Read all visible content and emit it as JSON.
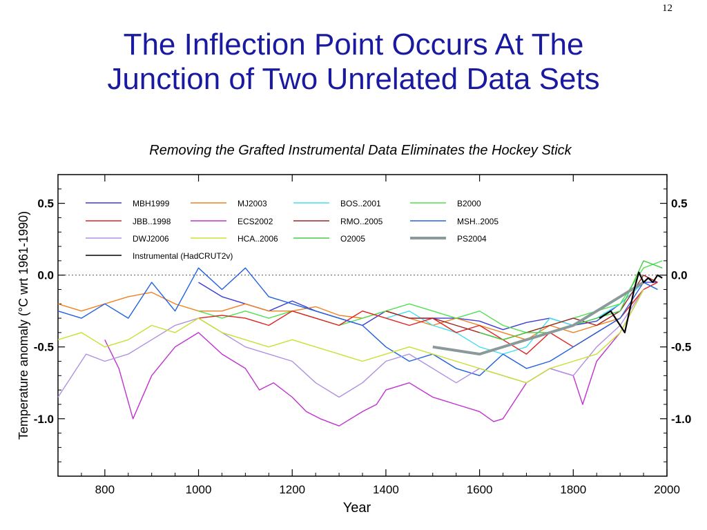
{
  "slide": {
    "number": "12",
    "title_line1": "The Inflection Point Occurs At The",
    "title_line2": "Junction of Two Unrelated Data Sets",
    "subtitle": "Removing the Grafted Instrumental Data Eliminates the Hockey Stick"
  },
  "colors": {
    "title": "#1a1aa0"
  },
  "chart_data": {
    "type": "line",
    "xlabel": "Year",
    "ylabel": "Temperature anomaly  (°C wrt 1961-1990)",
    "xlim": [
      700,
      2000
    ],
    "ylim": [
      -1.4,
      0.7
    ],
    "xticks": [
      800,
      1000,
      1200,
      1400,
      1600,
      1800,
      2000
    ],
    "yticks": [
      0.5,
      0.0,
      -0.5,
      -1.0
    ],
    "ytick_labels": [
      "0.5",
      "0.0",
      "-0.5",
      "-1.0"
    ],
    "zero_line": "dotted",
    "legend_placement": "top-left",
    "series": [
      {
        "name": "MBH1999",
        "color": "#3b3bd6",
        "x": [
          1000,
          1050,
          1100,
          1150,
          1200,
          1250,
          1300,
          1350,
          1400,
          1450,
          1500,
          1550,
          1600,
          1650,
          1700,
          1750,
          1800,
          1850,
          1900,
          1950,
          1980
        ],
        "y": [
          -0.05,
          -0.15,
          -0.2,
          -0.25,
          -0.18,
          -0.25,
          -0.3,
          -0.35,
          -0.25,
          -0.3,
          -0.3,
          -0.3,
          -0.32,
          -0.38,
          -0.33,
          -0.3,
          -0.35,
          -0.32,
          -0.2,
          -0.05,
          -0.05
        ]
      },
      {
        "name": "MJ2003",
        "color": "#f08020",
        "x": [
          700,
          750,
          800,
          850,
          900,
          950,
          1000,
          1050,
          1100,
          1150,
          1200,
          1250,
          1300,
          1350,
          1400,
          1450,
          1500,
          1550,
          1600,
          1650,
          1700,
          1750,
          1800,
          1850,
          1900,
          1950
        ],
        "y": [
          -0.2,
          -0.25,
          -0.2,
          -0.15,
          -0.12,
          -0.2,
          -0.25,
          -0.25,
          -0.2,
          -0.25,
          -0.25,
          -0.22,
          -0.28,
          -0.3,
          -0.25,
          -0.3,
          -0.35,
          -0.3,
          -0.35,
          -0.4,
          -0.45,
          -0.35,
          -0.4,
          -0.35,
          -0.3,
          -0.1
        ]
      },
      {
        "name": "BOS..2001",
        "color": "#40e0f0",
        "x": [
          1400,
          1450,
          1500,
          1550,
          1600,
          1650,
          1700,
          1750,
          1800,
          1850,
          1900,
          1950,
          1980
        ],
        "y": [
          -0.3,
          -0.25,
          -0.35,
          -0.4,
          -0.5,
          -0.55,
          -0.5,
          -0.3,
          -0.35,
          -0.3,
          -0.2,
          -0.05,
          -0.1
        ]
      },
      {
        "name": "B2000",
        "color": "#50e050",
        "x": [
          1000,
          1050,
          1100,
          1150,
          1200,
          1250,
          1300,
          1350,
          1400,
          1450,
          1500,
          1550,
          1600,
          1650,
          1700,
          1750,
          1800,
          1850,
          1900,
          1950,
          1990
        ],
        "y": [
          -0.25,
          -0.3,
          -0.25,
          -0.3,
          -0.25,
          -0.3,
          -0.35,
          -0.3,
          -0.25,
          -0.2,
          -0.25,
          -0.3,
          -0.25,
          -0.35,
          -0.4,
          -0.35,
          -0.3,
          -0.25,
          -0.2,
          0.05,
          0.1
        ]
      },
      {
        "name": "JBB..1998",
        "color": "#e02020",
        "x": [
          1000,
          1050,
          1100,
          1150,
          1200,
          1250,
          1300,
          1350,
          1400,
          1450,
          1500,
          1550,
          1600,
          1650,
          1700,
          1750,
          1800,
          1850,
          1900,
          1950,
          1980
        ],
        "y": [
          -0.3,
          -0.28,
          -0.3,
          -0.35,
          -0.25,
          -0.3,
          -0.35,
          -0.25,
          -0.3,
          -0.35,
          -0.3,
          -0.4,
          -0.35,
          -0.45,
          -0.55,
          -0.4,
          -0.5,
          -0.4,
          -0.3,
          -0.1,
          -0.05
        ]
      },
      {
        "name": "ECS2002",
        "color": "#c030d0",
        "x": [
          800,
          830,
          860,
          900,
          950,
          1000,
          1050,
          1100,
          1130,
          1160,
          1200,
          1230,
          1260,
          1300,
          1350,
          1380,
          1400,
          1450,
          1500,
          1550,
          1600,
          1630,
          1650,
          1700,
          1750,
          1800,
          1820,
          1850,
          1900,
          1950
        ],
        "y": [
          -0.45,
          -0.65,
          -1.0,
          -0.7,
          -0.5,
          -0.4,
          -0.55,
          -0.65,
          -0.8,
          -0.75,
          -0.85,
          -0.95,
          -1.0,
          -1.05,
          -0.95,
          -0.9,
          -0.8,
          -0.75,
          -0.85,
          -0.9,
          -0.95,
          -1.02,
          -1.0,
          -0.75,
          -0.65,
          -0.7,
          -0.9,
          -0.6,
          -0.4,
          -0.1
        ]
      },
      {
        "name": "RMO..2005",
        "color": "#a02020",
        "x": [
          1400,
          1450,
          1500,
          1550,
          1600,
          1650,
          1700,
          1750,
          1800,
          1850,
          1900,
          1950,
          1980
        ],
        "y": [
          -0.25,
          -0.3,
          -0.3,
          -0.35,
          -0.4,
          -0.45,
          -0.4,
          -0.35,
          -0.3,
          -0.35,
          -0.25,
          0.0,
          -0.05
        ]
      },
      {
        "name": "MSH..2005",
        "color": "#2060e0",
        "x": [
          700,
          750,
          800,
          850,
          900,
          950,
          1000,
          1050,
          1100,
          1150,
          1200,
          1250,
          1300,
          1350,
          1400,
          1450,
          1500,
          1550,
          1600,
          1650,
          1700,
          1750,
          1800,
          1850,
          1900,
          1950,
          1980
        ],
        "y": [
          -0.25,
          -0.3,
          -0.2,
          -0.3,
          -0.05,
          -0.25,
          0.05,
          -0.1,
          0.05,
          -0.15,
          -0.2,
          -0.25,
          -0.3,
          -0.35,
          -0.5,
          -0.6,
          -0.55,
          -0.65,
          -0.7,
          -0.55,
          -0.65,
          -0.6,
          -0.5,
          -0.4,
          -0.3,
          -0.05,
          -0.1
        ]
      },
      {
        "name": "DWJ2006",
        "color": "#b090e0",
        "x": [
          700,
          730,
          760,
          800,
          850,
          900,
          950,
          1000,
          1050,
          1100,
          1150,
          1200,
          1250,
          1300,
          1350,
          1400,
          1450,
          1500,
          1550,
          1600,
          1650,
          1700,
          1750,
          1800,
          1850,
          1900,
          1950
        ],
        "y": [
          -0.85,
          -0.7,
          -0.55,
          -0.6,
          -0.55,
          -0.45,
          -0.35,
          -0.3,
          -0.4,
          -0.5,
          -0.55,
          -0.6,
          -0.75,
          -0.85,
          -0.75,
          -0.6,
          -0.55,
          -0.65,
          -0.75,
          -0.65,
          -0.7,
          -0.75,
          -0.65,
          -0.7,
          -0.5,
          -0.35,
          -0.1
        ]
      },
      {
        "name": "HCA..2006",
        "color": "#c8e030",
        "x": [
          700,
          750,
          800,
          850,
          900,
          950,
          1000,
          1050,
          1100,
          1150,
          1200,
          1250,
          1300,
          1350,
          1400,
          1450,
          1500,
          1550,
          1600,
          1650,
          1700,
          1750,
          1800,
          1850,
          1900,
          1950
        ],
        "y": [
          -0.45,
          -0.4,
          -0.5,
          -0.45,
          -0.35,
          -0.4,
          -0.3,
          -0.4,
          -0.45,
          -0.5,
          -0.45,
          -0.5,
          -0.55,
          -0.6,
          -0.55,
          -0.5,
          -0.55,
          -0.6,
          -0.65,
          -0.7,
          -0.75,
          -0.65,
          -0.6,
          -0.55,
          -0.4,
          -0.1
        ]
      },
      {
        "name": "O2005",
        "color": "#40d040",
        "x": [
          1600,
          1650,
          1700,
          1750,
          1800,
          1850,
          1900,
          1950,
          1990
        ],
        "y": [
          -0.4,
          -0.45,
          -0.4,
          -0.4,
          -0.35,
          -0.3,
          -0.25,
          0.1,
          0.05
        ]
      },
      {
        "name": "PS2004",
        "color": "#8a9a9a",
        "x": [
          1500,
          1600,
          1700,
          1800,
          1900,
          1950
        ],
        "y": [
          -0.5,
          -0.55,
          -0.45,
          -0.35,
          -0.15,
          -0.05
        ]
      },
      {
        "name": "Instrumental (HadCRUT2v)",
        "color": "#000000",
        "x": [
          1856,
          1880,
          1900,
          1910,
          1920,
          1930,
          1940,
          1950,
          1960,
          1970,
          1980,
          1990
        ],
        "y": [
          -0.3,
          -0.25,
          -0.35,
          -0.4,
          -0.25,
          -0.1,
          0.02,
          -0.05,
          -0.02,
          -0.05,
          0.0,
          -0.02
        ]
      }
    ]
  }
}
